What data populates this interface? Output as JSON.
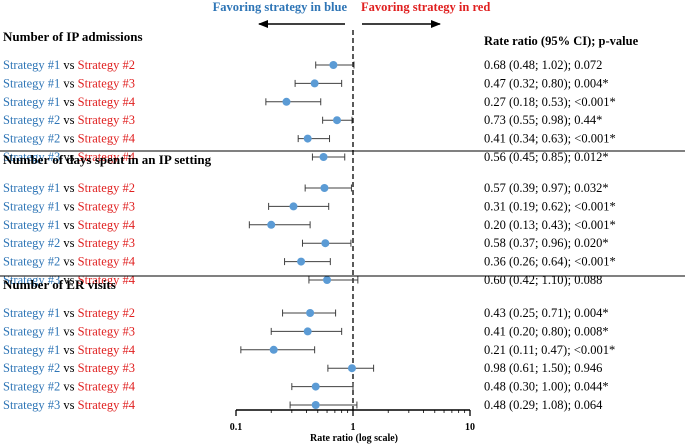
{
  "chart_data": {
    "type": "forest",
    "xscale": "log",
    "xlim": [
      0.1,
      10
    ],
    "xlabel": "Rate ratio (log scale)",
    "xticks": [
      "0.1",
      "1",
      "10"
    ],
    "reference_line": 1,
    "direction_labels": {
      "left": "Favoring strategy in blue",
      "right": "Favoring strategy in red"
    },
    "column_header": "Rate ratio (95% CI); p-value",
    "colors": {
      "blue": "#2e75b6",
      "red": "#e02020",
      "marker": "#5b9bd5",
      "whisker": "#404040"
    },
    "connector": "vs",
    "sections": [
      {
        "title": "Number of IP admissions",
        "rows": [
          {
            "blue": "Strategy #1",
            "red": "Strategy #2",
            "estimate": 0.68,
            "lower": 0.48,
            "upper": 1.02,
            "label": "0.68 (0.48; 1.02); 0.072"
          },
          {
            "blue": "Strategy #1",
            "red": "Strategy #3",
            "estimate": 0.47,
            "lower": 0.32,
            "upper": 0.8,
            "label": "0.47 (0.32; 0.80); 0.004*"
          },
          {
            "blue": "Strategy #1",
            "red": "Strategy #4",
            "estimate": 0.27,
            "lower": 0.18,
            "upper": 0.53,
            "label": "0.27 (0.18; 0.53); <0.001*"
          },
          {
            "blue": "Strategy #2",
            "red": "Strategy #3",
            "estimate": 0.73,
            "lower": 0.55,
            "upper": 0.98,
            "label": "0.73 (0.55; 0.98); 0.44*"
          },
          {
            "blue": "Strategy #2",
            "red": "Strategy #4",
            "estimate": 0.41,
            "lower": 0.34,
            "upper": 0.63,
            "label": "0.41 (0.34; 0.63); <0.001*"
          },
          {
            "blue": "Strategy #3",
            "red": "Strategy #4",
            "estimate": 0.56,
            "lower": 0.45,
            "upper": 0.85,
            "label": "0.56 (0.45; 0.85); 0.012*"
          }
        ]
      },
      {
        "title": "Number of days spent in an IP setting",
        "rows": [
          {
            "blue": "Strategy #1",
            "red": "Strategy #2",
            "estimate": 0.57,
            "lower": 0.39,
            "upper": 0.97,
            "label": "0.57 (0.39; 0.97); 0.032*"
          },
          {
            "blue": "Strategy #1",
            "red": "Strategy #3",
            "estimate": 0.31,
            "lower": 0.19,
            "upper": 0.62,
            "label": "0.31 (0.19; 0.62); <0.001*"
          },
          {
            "blue": "Strategy #1",
            "red": "Strategy #4",
            "estimate": 0.2,
            "lower": 0.13,
            "upper": 0.43,
            "label": "0.20 (0.13; 0.43); <0.001*"
          },
          {
            "blue": "Strategy #2",
            "red": "Strategy #3",
            "estimate": 0.58,
            "lower": 0.37,
            "upper": 0.96,
            "label": "0.58 (0.37; 0.96); 0.020*"
          },
          {
            "blue": "Strategy #2",
            "red": "Strategy #4",
            "estimate": 0.36,
            "lower": 0.26,
            "upper": 0.64,
            "label": "0.36 (0.26; 0.64); <0.001*"
          },
          {
            "blue": "Strategy #3",
            "red": "Strategy #4",
            "estimate": 0.6,
            "lower": 0.42,
            "upper": 1.1,
            "label": "0.60 (0.42; 1.10); 0.088"
          }
        ]
      },
      {
        "title": "Number of ER visits",
        "rows": [
          {
            "blue": "Strategy #1",
            "red": "Strategy #2",
            "estimate": 0.43,
            "lower": 0.25,
            "upper": 0.71,
            "label": "0.43 (0.25; 0.71); 0.004*"
          },
          {
            "blue": "Strategy #1",
            "red": "Strategy #3",
            "estimate": 0.41,
            "lower": 0.2,
            "upper": 0.8,
            "label": "0.41 (0.20; 0.80); 0.008*"
          },
          {
            "blue": "Strategy #1",
            "red": "Strategy #4",
            "estimate": 0.21,
            "lower": 0.11,
            "upper": 0.47,
            "label": "0.21 (0.11; 0.47); <0.001*"
          },
          {
            "blue": "Strategy #2",
            "red": "Strategy #3",
            "estimate": 0.98,
            "lower": 0.61,
            "upper": 1.5,
            "label": "0.98 (0.61; 1.50); 0.946"
          },
          {
            "blue": "Strategy #2",
            "red": "Strategy #4",
            "estimate": 0.48,
            "lower": 0.3,
            "upper": 1.0,
            "label": "0.48 (0.30; 1.00); 0.044*"
          },
          {
            "blue": "Strategy #3",
            "red": "Strategy #4",
            "estimate": 0.48,
            "lower": 0.29,
            "upper": 1.08,
            "label": "0.48 (0.29; 1.08); 0.064"
          }
        ]
      }
    ]
  }
}
